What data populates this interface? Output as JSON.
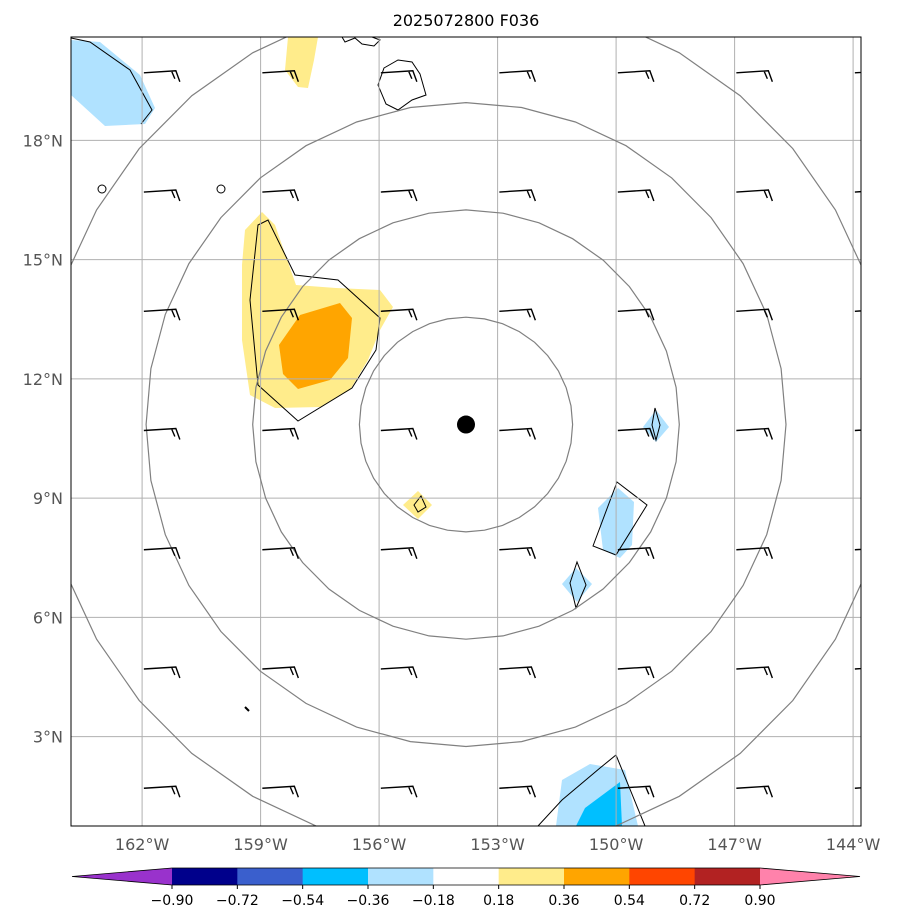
{
  "title": "2025072800 F036",
  "map": {
    "lon_range": [
      -163.8,
      -143.8
    ],
    "lat_range": [
      0.75,
      20.6
    ],
    "center": {
      "lon": -153.8,
      "lat": 10.85
    },
    "range_ring_radii_deg": [
      2.7,
      5.4,
      8.1,
      10.8
    ],
    "gridlines": true,
    "lat_ticks": [
      {
        "value": 3,
        "label": "3°N"
      },
      {
        "value": 6,
        "label": "6°N"
      },
      {
        "value": 9,
        "label": "9°N"
      },
      {
        "value": 12,
        "label": "12°N"
      },
      {
        "value": 15,
        "label": "15°N"
      },
      {
        "value": 18,
        "label": "18°N"
      }
    ],
    "lon_ticks": [
      {
        "value": -162,
        "label": "162°W"
      },
      {
        "value": -159,
        "label": "159°W"
      },
      {
        "value": -156,
        "label": "156°W"
      },
      {
        "value": -153,
        "label": "153°W"
      },
      {
        "value": -150,
        "label": "150°W"
      },
      {
        "value": -147,
        "label": "147°W"
      },
      {
        "value": -144,
        "label": "144°W"
      }
    ]
  },
  "colorbar": {
    "tick_labels": [
      "−0.90",
      "−0.72",
      "−0.54",
      "−0.36",
      "−0.18",
      "0.18",
      "0.36",
      "0.54",
      "0.72",
      "0.90"
    ],
    "colors": [
      "#9932cc",
      "#00008b",
      "#3a5fcd",
      "#00bfff",
      "#b0e2ff",
      "#ffffff",
      "#ffec8b",
      "#ffa500",
      "#ff4500",
      "#b22222",
      "#ff82ab"
    ],
    "extend": "both"
  },
  "wind_barbs": {
    "lons": [
      -161.5,
      -158.5,
      -155.5,
      -152.5,
      -149.5,
      -146.5,
      -143.5
    ],
    "lats": [
      1.7,
      4.7,
      7.7,
      10.7,
      13.7,
      16.7,
      19.7
    ]
  }
}
